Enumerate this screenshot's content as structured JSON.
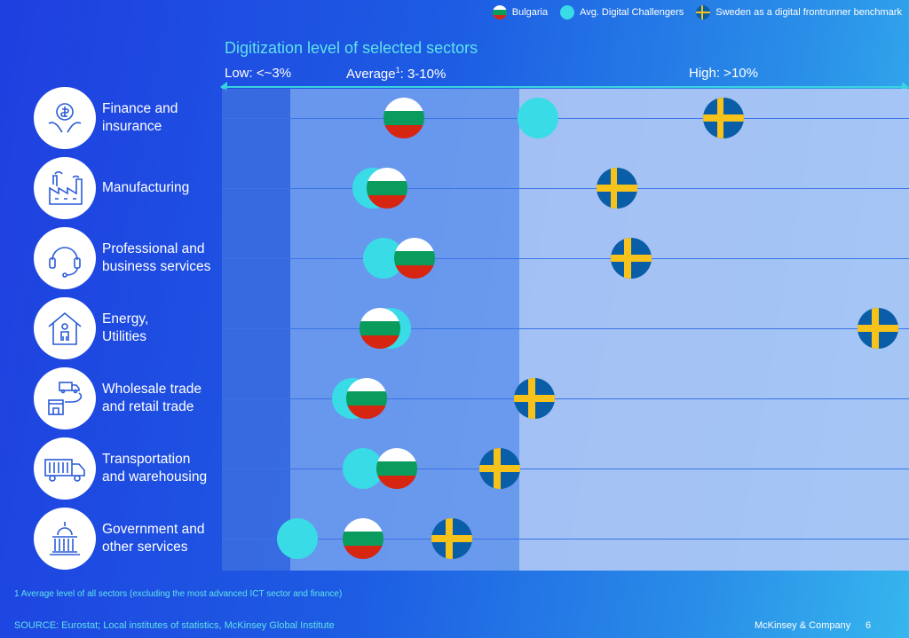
{
  "legend": {
    "bulgaria": "Bulgaria",
    "avg": "Avg. Digital Challengers",
    "sweden": "Sweden as a digital frontrunner benchmark"
  },
  "colors": {
    "avg_digital_challengers": "#38dbe6",
    "accent_text": "#5fe3ea",
    "band_low": "#3c6ee1",
    "band_average": "#73a0ee",
    "band_high": "#afc8f5"
  },
  "chart_data": {
    "type": "scatter",
    "title": "Digitization level of selected sectors",
    "scale": {
      "low": "Low: <~3%",
      "average_prefix": "Average",
      "average_sup": "1",
      "average_suffix": ": 3-10%",
      "high": "High: >10%"
    },
    "x_unit": "% digitization level (approximate, read from position)",
    "bands": [
      {
        "name": "Low",
        "range": [
          0,
          3
        ]
      },
      {
        "name": "Average",
        "range": [
          3,
          10
        ]
      },
      {
        "name": "High",
        "range": [
          10,
          18
        ]
      }
    ],
    "categories": [
      "Finance and insurance",
      "Manufacturing",
      "Professional and business services",
      "Energy, Utilities",
      "Wholesale trade and retail trade",
      "Transportation and warehousing",
      "Government and other services"
    ],
    "series": [
      {
        "name": "Bulgaria",
        "values": [
          5.3,
          4.8,
          5.6,
          4.6,
          4.2,
          5.1,
          4.1
        ]
      },
      {
        "name": "Avg. Digital Challengers",
        "values": [
          9.2,
          4.4,
          4.7,
          4.9,
          3.8,
          4.1,
          2.2
        ]
      },
      {
        "name": "Sweden as a digital frontrunner benchmark",
        "values": [
          14.6,
          11.5,
          11.9,
          19.1,
          9.1,
          8.1,
          6.7
        ]
      }
    ]
  },
  "sectors": [
    {
      "label": "Finance and\ninsurance",
      "icon": "finance-icon"
    },
    {
      "label": "Manufacturing",
      "icon": "factory-icon"
    },
    {
      "label": "Professional and\nbusiness services",
      "icon": "headset-icon"
    },
    {
      "label": "Energy,\nUtilities",
      "icon": "house-person-icon"
    },
    {
      "label": "Wholesale trade\nand retail trade",
      "icon": "delivery-store-icon"
    },
    {
      "label": "Transportation\nand warehousing",
      "icon": "truck-icon"
    },
    {
      "label": "Government and\nother services",
      "icon": "government-building-icon"
    }
  ],
  "footnote": "1 Average level of all sectors (excluding the most advanced ICT sector and finance)",
  "source": "SOURCE: Eurostat; Local institutes of statistics, McKinsey Global Institute",
  "brand": "McKinsey & Company",
  "page_number": "6"
}
